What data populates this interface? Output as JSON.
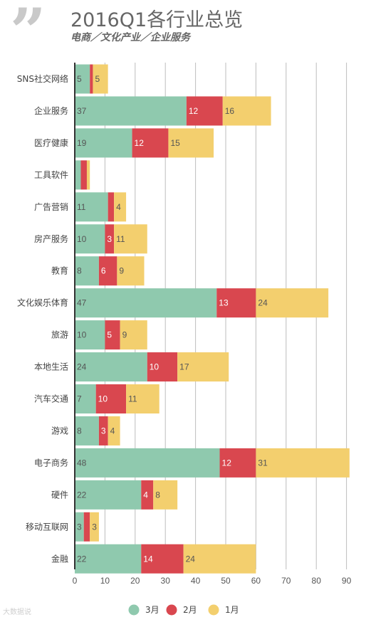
{
  "header": {
    "title": "2016Q1各行业总览",
    "subtitle": "电商／文化产业／企业服务"
  },
  "watermark": "大数据说",
  "chart_data": {
    "type": "bar",
    "orientation": "horizontal",
    "stacked": true,
    "title": "2016Q1各行业总览",
    "subtitle": "电商／文化产业／企业服务",
    "categories": [
      "SNS社交网络",
      "企业服务",
      "医疗健康",
      "工具软件",
      "广告营销",
      "房产服务",
      "教育",
      "文化娱乐体育",
      "旅游",
      "本地生活",
      "汽车交通",
      "游戏",
      "电子商务",
      "硬件",
      "移动互联网",
      "金融"
    ],
    "series": [
      {
        "name": "3月",
        "color": "#8fc9ae",
        "values": [
          5,
          37,
          19,
          2,
          11,
          10,
          8,
          47,
          10,
          24,
          7,
          8,
          48,
          22,
          3,
          22
        ]
      },
      {
        "name": "2月",
        "color": "#d9474f",
        "values": [
          1,
          12,
          12,
          2,
          2,
          3,
          6,
          13,
          5,
          10,
          10,
          3,
          12,
          4,
          2,
          14
        ]
      },
      {
        "name": "1月",
        "color": "#f3cf6e",
        "values": [
          5,
          16,
          15,
          1,
          4,
          11,
          9,
          24,
          9,
          17,
          11,
          4,
          31,
          8,
          3,
          24
        ]
      }
    ],
    "xlim": [
      0,
      93
    ],
    "xticks": [
      0,
      10,
      20,
      30,
      40,
      50,
      60,
      70,
      80,
      90
    ],
    "grid": true,
    "legend": "bottom",
    "legend_labels": [
      "3月",
      "2月",
      "1月"
    ]
  }
}
